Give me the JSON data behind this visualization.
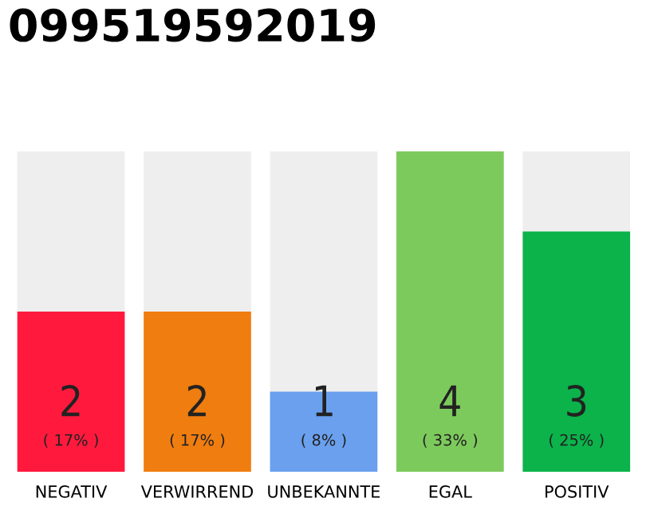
{
  "chart_data": {
    "type": "bar",
    "title": "099519592019",
    "categories": [
      "NEGATIV",
      "VERWIRREND",
      "UNBEKANNTE",
      "EGAL",
      "POSITIV"
    ],
    "values": [
      2,
      2,
      1,
      4,
      3
    ],
    "colors": [
      "#ff1a3d",
      "#f07d10",
      "#6aa0ee",
      "#7dca5c",
      "#0bb34a"
    ],
    "data_labels": true,
    "annotations": [
      "( 17% )",
      "( 17% )",
      "( 8% )",
      "( 33% )",
      "( 25% )"
    ],
    "grid": false,
    "legend": false
  }
}
